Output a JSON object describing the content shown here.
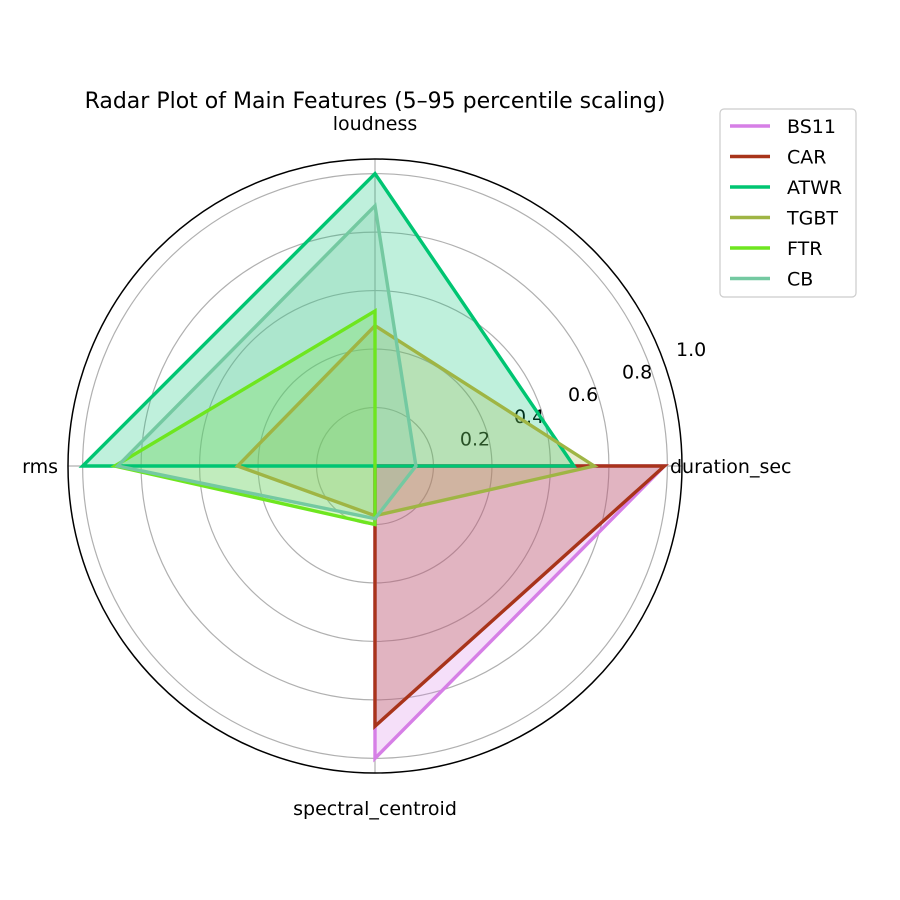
{
  "chart_data": {
    "type": "radar",
    "title": "Radar Plot of Main Features (5–95 percentile scaling)",
    "axes": [
      "duration_sec",
      "loudness",
      "rms",
      "spectral_centroid"
    ],
    "rlim": [
      0,
      1.05
    ],
    "rticks": [
      0.2,
      0.4,
      0.6,
      0.8,
      1.0
    ],
    "rtick_labels": [
      "0.2",
      "0.4",
      "0.6",
      "0.8",
      "1.0"
    ],
    "grid": true,
    "legend_position": "top-right",
    "series": [
      {
        "name": "BS11",
        "color": "#d67fe6",
        "values": [
          0.99,
          0.0,
          0.0,
          1.0
        ]
      },
      {
        "name": "CAR",
        "color": "#a8341a",
        "values": [
          0.99,
          0.0,
          0.0,
          0.89
        ]
      },
      {
        "name": "ATWR",
        "color": "#00c572",
        "values": [
          0.68,
          1.0,
          1.0,
          0.0
        ]
      },
      {
        "name": "TGBT",
        "color": "#9fb544",
        "values": [
          0.75,
          0.48,
          0.47,
          0.17
        ]
      },
      {
        "name": "FTR",
        "color": "#6ee61f",
        "values": [
          0.0,
          0.53,
          0.89,
          0.2
        ]
      },
      {
        "name": "CB",
        "color": "#74c9a1",
        "values": [
          0.14,
          0.89,
          0.88,
          0.18
        ]
      }
    ]
  }
}
